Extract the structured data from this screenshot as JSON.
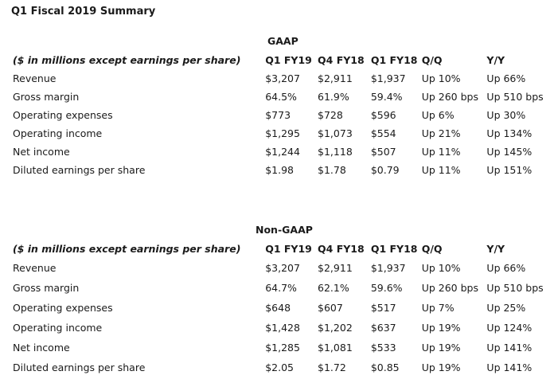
{
  "title": "Q1 Fiscal 2019 Summary",
  "gaap": {
    "heading": "GAAP",
    "label_header": "($ in millions except earnings per share)",
    "columns": [
      "Q1 FY19",
      "Q4 FY18",
      "Q1 FY18",
      "Q/Q",
      "Y/Y"
    ],
    "rows": [
      {
        "label": "Revenue",
        "values": [
          "$3,207",
          "$2,911",
          "$1,937",
          "Up 10%",
          "Up 66%"
        ]
      },
      {
        "label": "Gross margin",
        "values": [
          "64.5%",
          "61.9%",
          "59.4%",
          "Up 260 bps",
          "Up 510 bps"
        ]
      },
      {
        "label": "Operating expenses",
        "values": [
          "$773",
          "$728",
          "$596",
          "Up 6%",
          "Up 30%"
        ]
      },
      {
        "label": "Operating income",
        "values": [
          "$1,295",
          "$1,073",
          "$554",
          "Up 21%",
          "Up 134%"
        ]
      },
      {
        "label": "Net income",
        "values": [
          "$1,244",
          "$1,118",
          "$507",
          "Up 11%",
          "Up 145%"
        ]
      },
      {
        "label": "Diluted earnings per share",
        "values": [
          "$1.98",
          "$1.78",
          "$0.79",
          "Up 11%",
          "Up 151%"
        ]
      }
    ]
  },
  "nongaap": {
    "heading": "Non-GAAP",
    "label_header": "($ in millions except earnings per share)",
    "columns": [
      "Q1 FY19",
      "Q4 FY18",
      "Q1 FY18",
      "Q/Q",
      "Y/Y"
    ],
    "rows": [
      {
        "label": "Revenue",
        "values": [
          "$3,207",
          "$2,911",
          "$1,937",
          "Up 10%",
          "Up 66%"
        ]
      },
      {
        "label": "Gross margin",
        "values": [
          "64.7%",
          "62.1%",
          "59.6%",
          "Up 260 bps",
          "Up 510 bps"
        ]
      },
      {
        "label": "Operating expenses",
        "values": [
          "$648",
          "$607",
          "$517",
          "Up 7%",
          "Up 25%"
        ]
      },
      {
        "label": "Operating income",
        "values": [
          "$1,428",
          "$1,202",
          "$637",
          "Up 19%",
          "Up 124%"
        ]
      },
      {
        "label": "Net income",
        "values": [
          "$1,285",
          "$1,081",
          "$533",
          "Up 19%",
          "Up 141%"
        ]
      },
      {
        "label": "Diluted earnings per share",
        "values": [
          "$2.05",
          "$1.72",
          "$0.85",
          "Up 19%",
          "Up 141%"
        ]
      }
    ]
  }
}
